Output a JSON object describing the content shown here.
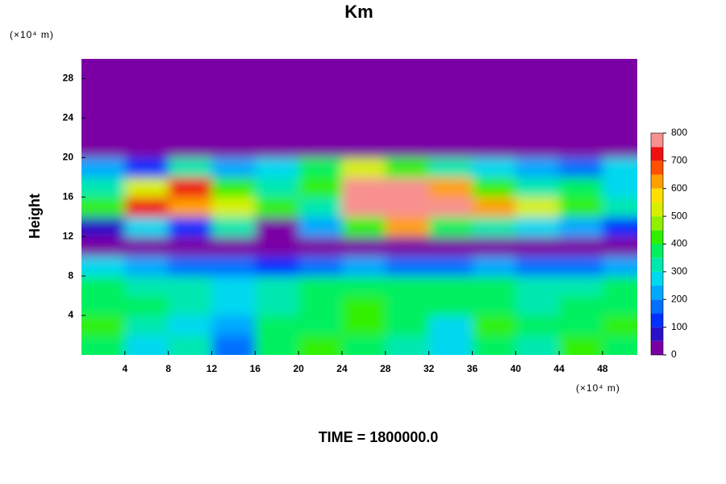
{
  "chart_data": {
    "type": "heatmap",
    "title": "Km",
    "x_unit_label": "(×10⁴ m)",
    "y_unit_label": "(×10⁴ m)",
    "ylabel": "Height",
    "footer": "TIME = 1800000.0",
    "xlim": [
      0,
      51.2
    ],
    "ylim": [
      0,
      30
    ],
    "xticks": [
      4,
      8,
      12,
      16,
      20,
      24,
      28,
      32,
      36,
      40,
      44,
      48
    ],
    "yticks": [
      4,
      8,
      12,
      16,
      20,
      24,
      28
    ],
    "x": [
      2,
      6,
      10,
      14,
      18,
      22,
      26,
      30,
      34,
      38,
      42,
      46,
      50
    ],
    "y": [
      1,
      3,
      5,
      7,
      9,
      11,
      13,
      15,
      17,
      19,
      21,
      23,
      25,
      27,
      29
    ],
    "z": [
      [
        380,
        250,
        300,
        150,
        350,
        400,
        380,
        300,
        280,
        350,
        300,
        400,
        380
      ],
      [
        400,
        300,
        250,
        200,
        380,
        350,
        400,
        350,
        280,
        400,
        350,
        380,
        400
      ],
      [
        380,
        350,
        300,
        250,
        300,
        380,
        400,
        380,
        350,
        380,
        300,
        350,
        380
      ],
      [
        350,
        300,
        300,
        280,
        320,
        350,
        380,
        350,
        380,
        350,
        300,
        330,
        350
      ],
      [
        250,
        200,
        150,
        150,
        100,
        150,
        200,
        150,
        150,
        200,
        150,
        150,
        200
      ],
      [
        0,
        0,
        0,
        0,
        0,
        0,
        0,
        0,
        0,
        0,
        0,
        0,
        0
      ],
      [
        50,
        250,
        100,
        300,
        0,
        200,
        400,
        600,
        350,
        300,
        250,
        200,
        100
      ],
      [
        400,
        700,
        600,
        500,
        400,
        300,
        800,
        800,
        800,
        600,
        500,
        400,
        300
      ],
      [
        300,
        500,
        700,
        400,
        300,
        400,
        800,
        800,
        600,
        400,
        300,
        350,
        250
      ],
      [
        200,
        100,
        300,
        200,
        250,
        350,
        500,
        400,
        300,
        250,
        200,
        150,
        250
      ],
      [
        0,
        0,
        0,
        0,
        0,
        0,
        0,
        0,
        0,
        0,
        0,
        0,
        0
      ],
      [
        0,
        0,
        0,
        0,
        0,
        0,
        0,
        0,
        0,
        0,
        0,
        0,
        0
      ],
      [
        0,
        0,
        0,
        0,
        0,
        0,
        0,
        0,
        0,
        0,
        0,
        0,
        0
      ],
      [
        0,
        0,
        0,
        0,
        0,
        0,
        0,
        0,
        0,
        0,
        0,
        0,
        0
      ],
      [
        0,
        0,
        0,
        0,
        0,
        0,
        0,
        0,
        0,
        0,
        0,
        0,
        0
      ]
    ],
    "levels": [
      0,
      50,
      100,
      150,
      200,
      250,
      300,
      350,
      400,
      450,
      500,
      550,
      600,
      650,
      700,
      750,
      800
    ],
    "colors": [
      "#7a00a5",
      "#2a10c8",
      "#0030ff",
      "#0070ff",
      "#00a8ff",
      "#00d8f0",
      "#00e8b0",
      "#00f060",
      "#30f000",
      "#90f000",
      "#d8f000",
      "#ffe000",
      "#ffa000",
      "#ff5000",
      "#f01010",
      "#f89090"
    ],
    "colorbar_ticks": [
      0,
      100,
      200,
      300,
      400,
      500,
      600,
      700,
      800
    ]
  }
}
